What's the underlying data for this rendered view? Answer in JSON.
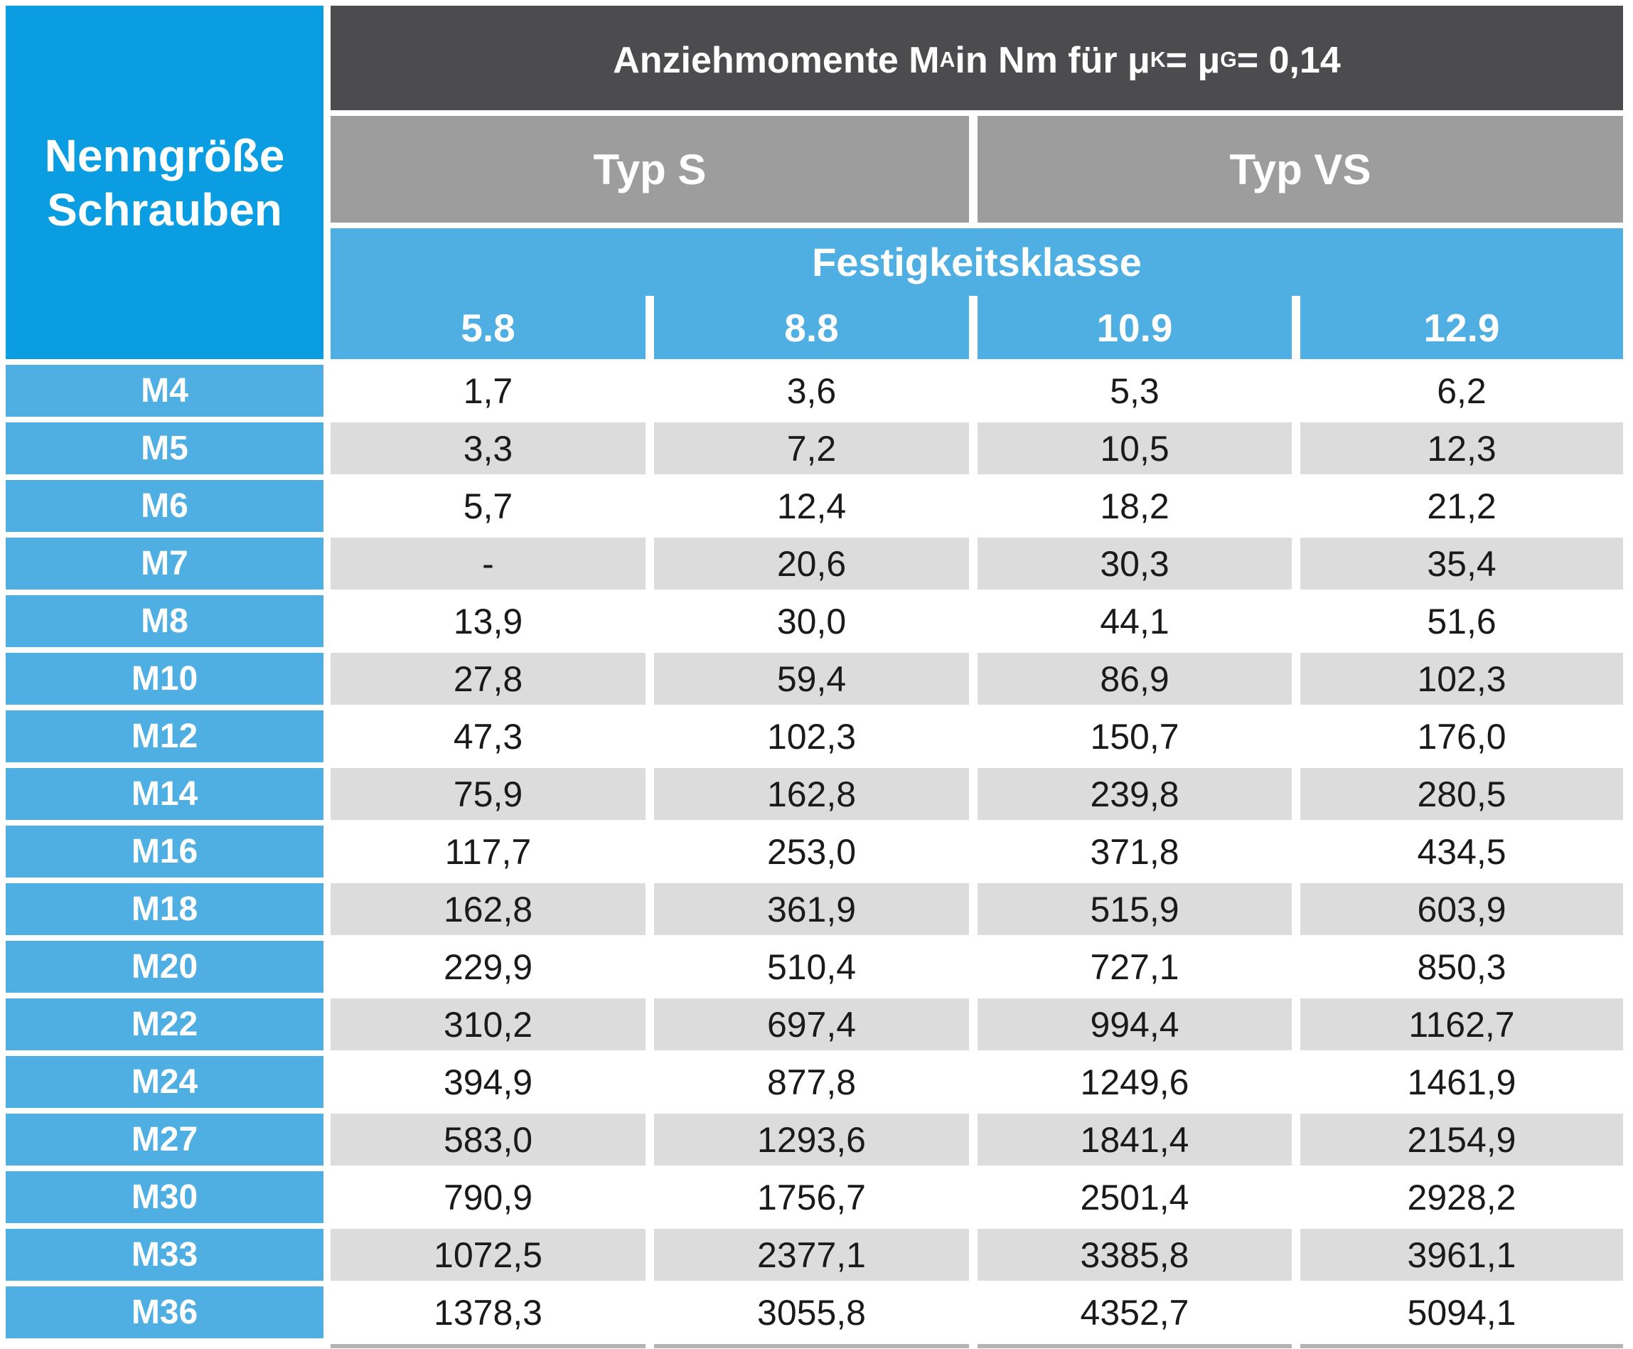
{
  "table": {
    "corner_header": "Nenngröße\nSchrauben",
    "title_segments": [
      {
        "t": "Anziehmomente M"
      },
      {
        "t": "A",
        "sub": true
      },
      {
        "t": " in Nm für μ"
      },
      {
        "t": "K",
        "sub": true
      },
      {
        "t": " = μ"
      },
      {
        "t": "G",
        "sub": true
      },
      {
        "t": " = 0,14"
      }
    ],
    "type_headers": [
      {
        "id": "s",
        "label": "Typ S"
      },
      {
        "id": "vs",
        "label": "Typ VS"
      }
    ],
    "class_header": "Festigkeitsklasse",
    "classes": [
      "5.8",
      "8.8",
      "10.9",
      "12.9"
    ],
    "rows": [
      {
        "size": "M4",
        "values": [
          "1,7",
          "3,6",
          "5,3",
          "6,2"
        ]
      },
      {
        "size": "M5",
        "values": [
          "3,3",
          "7,2",
          "10,5",
          "12,3"
        ]
      },
      {
        "size": "M6",
        "values": [
          "5,7",
          "12,4",
          "18,2",
          "21,2"
        ]
      },
      {
        "size": "M7",
        "values": [
          "-",
          "20,6",
          "30,3",
          "35,4"
        ]
      },
      {
        "size": "M8",
        "values": [
          "13,9",
          "30,0",
          "44,1",
          "51,6"
        ]
      },
      {
        "size": "M10",
        "values": [
          "27,8",
          "59,4",
          "86,9",
          "102,3"
        ]
      },
      {
        "size": "M12",
        "values": [
          "47,3",
          "102,3",
          "150,7",
          "176,0"
        ]
      },
      {
        "size": "M14",
        "values": [
          "75,9",
          "162,8",
          "239,8",
          "280,5"
        ]
      },
      {
        "size": "M16",
        "values": [
          "117,7",
          "253,0",
          "371,8",
          "434,5"
        ]
      },
      {
        "size": "M18",
        "values": [
          "162,8",
          "361,9",
          "515,9",
          "603,9"
        ]
      },
      {
        "size": "M20",
        "values": [
          "229,9",
          "510,4",
          "727,1",
          "850,3"
        ]
      },
      {
        "size": "M22",
        "values": [
          "310,2",
          "697,4",
          "994,4",
          "1162,7"
        ]
      },
      {
        "size": "M24",
        "values": [
          "394,9",
          "877,8",
          "1249,6",
          "1461,9"
        ]
      },
      {
        "size": "M27",
        "values": [
          "583,0",
          "1293,6",
          "1841,4",
          "2154,9"
        ]
      },
      {
        "size": "M30",
        "values": [
          "790,9",
          "1756,7",
          "2501,4",
          "2928,2"
        ]
      },
      {
        "size": "M33",
        "values": [
          "1072,5",
          "2377,1",
          "3385,8",
          "3961,1"
        ]
      },
      {
        "size": "M36",
        "values": [
          "1378,3",
          "3055,8",
          "4352,7",
          "5094,1"
        ]
      }
    ],
    "colors": {
      "dark_header": "#4c4c4e",
      "type_header": "#9d9d9d",
      "blue_dark": "#0b9de2",
      "blue_light": "#4fafe2",
      "row_alt": "#dcdcdc",
      "bottom_border": "#b4b4b4",
      "text_dark": "#1a1a1a"
    }
  }
}
